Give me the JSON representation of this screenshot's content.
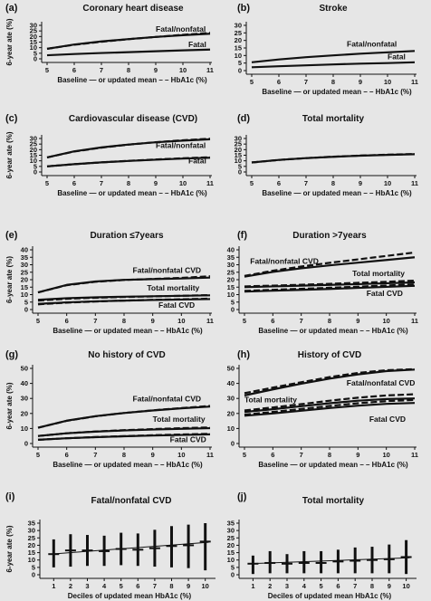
{
  "figure": {
    "background": "#e6e6e6",
    "line_color": "#111111"
  },
  "chart_data": [
    {
      "panel": "(a)",
      "type": "line",
      "title": "Coronary heart disease",
      "ylabel": "6-year ate (%)",
      "xlabel": "Baseline — or updated mean – – HbA1c (%)",
      "xlim": [
        5,
        11
      ],
      "ylim": [
        0,
        30
      ],
      "xticks": [
        5,
        6,
        7,
        8,
        9,
        10,
        11
      ],
      "yticks": [
        0,
        5,
        10,
        15,
        20,
        25,
        30
      ],
      "series": [
        {
          "name": "Fatal/nonfatal",
          "x": [
            5,
            6,
            7,
            8,
            9,
            10,
            11
          ],
          "y": [
            9.0,
            12.8,
            15.6,
            17.7,
            19.6,
            21.2,
            22.5
          ],
          "dashed": [
            9.0,
            12.6,
            15.3,
            17.6,
            19.6,
            21.5,
            23.3
          ]
        },
        {
          "name": "Fatal",
          "x": [
            5,
            6,
            7,
            8,
            9,
            10,
            11
          ],
          "y": [
            3.2,
            4.3,
            5.2,
            6.0,
            6.8,
            7.6,
            8.3
          ]
        }
      ],
      "annotations": [
        {
          "text": "Fatal/nonfatal",
          "x": 9.0,
          "y": 24.5
        },
        {
          "text": "Fatal",
          "x": 10.2,
          "y": 10.5
        }
      ]
    },
    {
      "panel": "(b)",
      "type": "line",
      "title": "Stroke",
      "ylabel": "",
      "xlabel": "Baseline — or updated mean – – HbA1c (%)",
      "xlim": [
        5,
        11
      ],
      "ylim": [
        0,
        30
      ],
      "xticks": [
        5,
        6,
        7,
        8,
        9,
        10,
        11
      ],
      "yticks": [
        0,
        5,
        10,
        15,
        20,
        25,
        30
      ],
      "series": [
        {
          "name": "Fatal/nonfatal",
          "x": [
            5,
            6,
            7,
            8,
            9,
            10,
            11
          ],
          "y": [
            5.5,
            7.4,
            8.9,
            10.1,
            11.2,
            12.1,
            13.0
          ]
        },
        {
          "name": "Fatal",
          "x": [
            5,
            6,
            7,
            8,
            9,
            10,
            11
          ],
          "y": [
            2.2,
            2.9,
            3.5,
            4.1,
            4.6,
            5.0,
            5.5
          ]
        }
      ],
      "annotations": [
        {
          "text": "Fatal/nonfatal",
          "x": 8.5,
          "y": 15.8
        },
        {
          "text": "Fatal",
          "x": 10.0,
          "y": 7.4
        }
      ]
    },
    {
      "panel": "(c)",
      "type": "line",
      "title": "Cardiovascular disease (CVD)",
      "ylabel": "6-year ate (%)",
      "xlabel": "Baseline — or updated mean – – HbA1c (%)",
      "xlim": [
        5,
        11
      ],
      "ylim": [
        0,
        30
      ],
      "xticks": [
        5,
        6,
        7,
        8,
        9,
        10,
        11
      ],
      "yticks": [
        0,
        5,
        10,
        15,
        20,
        25,
        30
      ],
      "series": [
        {
          "name": "Fatal/nonfatal",
          "x": [
            5,
            6,
            7,
            8,
            9,
            10,
            11
          ],
          "y": [
            13.0,
            18.5,
            22.0,
            24.6,
            26.6,
            28.1,
            29.3
          ],
          "dashed": [
            13.0,
            18.3,
            21.8,
            24.5,
            26.7,
            28.4,
            29.8
          ]
        },
        {
          "name": "Fatal",
          "x": [
            5,
            6,
            7,
            8,
            9,
            10,
            11
          ],
          "y": [
            5.0,
            7.0,
            8.6,
            9.9,
            11.0,
            12.0,
            12.8
          ],
          "dashed": [
            5.0,
            7.0,
            8.6,
            10.0,
            11.2,
            12.3,
            13.2
          ]
        }
      ],
      "annotations": [
        {
          "text": "Fatal/nonfatal",
          "x": 9.0,
          "y": 21.5
        },
        {
          "text": "Fatal",
          "x": 10.2,
          "y": 7.8
        }
      ]
    },
    {
      "panel": "(d)",
      "type": "line",
      "title": "Total mortality",
      "ylabel": "",
      "xlabel": "Baseline — or updated mean – – HbA1c (%)",
      "xlim": [
        5,
        11
      ],
      "ylim": [
        0,
        30
      ],
      "xticks": [
        5,
        6,
        7,
        8,
        9,
        10,
        11
      ],
      "yticks": [
        0,
        5,
        10,
        15,
        20,
        25,
        30
      ],
      "series": [
        {
          "name": "Total mortality",
          "x": [
            5,
            6,
            7,
            8,
            9,
            10,
            11
          ],
          "y": [
            8.5,
            10.8,
            12.4,
            13.6,
            14.6,
            15.3,
            15.9
          ],
          "dashed": [
            8.5,
            10.8,
            12.4,
            13.7,
            14.7,
            15.5,
            16.1
          ]
        }
      ],
      "annotations": []
    },
    {
      "panel": "(e)",
      "type": "line",
      "title": "Duration ≤7years",
      "ylabel": "6-year ate (%)",
      "xlabel": "Baseline — or updated mean – – HbA1c (%)",
      "xlim": [
        5,
        11
      ],
      "ylim": [
        0,
        40
      ],
      "xticks": [
        5,
        6,
        7,
        8,
        9,
        10,
        11
      ],
      "yticks": [
        0,
        5,
        10,
        15,
        20,
        25,
        30,
        35,
        40
      ],
      "series": [
        {
          "name": "Fatal/nonfatal CVD",
          "x": [
            5,
            6,
            7,
            8,
            9,
            10,
            11
          ],
          "y": [
            11.5,
            16.5,
            18.8,
            19.9,
            20.4,
            20.8,
            21.4
          ],
          "dashed": [
            11.5,
            16.3,
            18.6,
            19.8,
            20.5,
            21.2,
            22.3
          ]
        },
        {
          "name": "Total mortality",
          "x": [
            5,
            6,
            7,
            8,
            9,
            10,
            11
          ],
          "y": [
            6.5,
            7.6,
            8.2,
            8.6,
            8.9,
            9.2,
            9.5
          ],
          "dashed": [
            6.0,
            7.2,
            7.9,
            8.4,
            8.8,
            9.2,
            9.7
          ]
        },
        {
          "name": "Fatal CVD",
          "x": [
            5,
            6,
            7,
            8,
            9,
            10,
            11
          ],
          "y": [
            3.8,
            4.8,
            5.5,
            6.0,
            6.4,
            6.7,
            7.0
          ],
          "dashed": [
            3.5,
            4.6,
            5.4,
            6.0,
            6.5,
            6.9,
            7.3
          ]
        }
      ],
      "annotations": [
        {
          "text": "Fatal/nonfatal CVD",
          "x": 8.3,
          "y": 24.5
        },
        {
          "text": "Total mortality",
          "x": 8.8,
          "y": 12.6
        },
        {
          "text": "Fatal CVD",
          "x": 9.2,
          "y": 1.2
        }
      ]
    },
    {
      "panel": "(f)",
      "type": "line",
      "title": "Duration >7years",
      "ylabel": "",
      "xlabel": "Baseline — or updated mean – – HbA1c (%)",
      "xlim": [
        5,
        11
      ],
      "ylim": [
        0,
        40
      ],
      "xticks": [
        5,
        6,
        7,
        8,
        9,
        10,
        11
      ],
      "yticks": [
        0,
        5,
        10,
        15,
        20,
        25,
        30,
        35,
        40
      ],
      "series": [
        {
          "name": "Fatal/nonfatal CVD",
          "x": [
            5,
            6,
            7,
            8,
            9,
            10,
            11
          ],
          "y": [
            22.0,
            25.2,
            27.6,
            29.6,
            31.4,
            33.2,
            35.0
          ],
          "dashed": [
            22.5,
            26.0,
            28.8,
            31.3,
            33.6,
            35.9,
            38.2
          ]
        },
        {
          "name": "Total mortality",
          "x": [
            5,
            6,
            7,
            8,
            9,
            10,
            11
          ],
          "y": [
            15.0,
            15.5,
            16.0,
            16.5,
            17.0,
            17.6,
            18.2
          ],
          "dashed": [
            15.5,
            16.0,
            16.6,
            17.2,
            17.9,
            18.6,
            19.4
          ]
        },
        {
          "name": "Fatal CVD",
          "x": [
            5,
            6,
            7,
            8,
            9,
            10,
            11
          ],
          "y": [
            12.0,
            12.6,
            13.2,
            13.8,
            14.5,
            15.2,
            15.9
          ],
          "dashed": [
            12.5,
            13.2,
            13.9,
            14.6,
            15.3,
            16.1,
            16.9
          ]
        }
      ],
      "annotations": [
        {
          "text": "Fatal/nonfatal CVD",
          "x": 5.2,
          "y": 30.5
        },
        {
          "text": "Total mortality",
          "x": 8.8,
          "y": 22.5
        },
        {
          "text": "Fatal CVD",
          "x": 9.3,
          "y": 9.0
        }
      ]
    },
    {
      "panel": "(g)",
      "type": "line",
      "title": "No history of CVD",
      "ylabel": "6-year ate (%)",
      "xlabel": "Baseline — or updated mean – – HbA1c (%)",
      "xlim": [
        5,
        11
      ],
      "ylim": [
        0,
        50
      ],
      "xticks": [
        5,
        6,
        7,
        8,
        9,
        10,
        11
      ],
      "yticks": [
        0,
        10,
        20,
        30,
        40,
        50
      ],
      "series": [
        {
          "name": "Fatal/nonfatal CVD",
          "x": [
            5,
            6,
            7,
            8,
            9,
            10,
            11
          ],
          "y": [
            10.5,
            15.2,
            18.2,
            20.3,
            22.0,
            23.4,
            24.6
          ],
          "dashed": [
            10.5,
            15.1,
            18.1,
            20.3,
            22.1,
            23.6,
            25.0
          ]
        },
        {
          "name": "Total mortality",
          "x": [
            5,
            6,
            7,
            8,
            9,
            10,
            11
          ],
          "y": [
            5.0,
            6.8,
            7.9,
            8.7,
            9.3,
            9.8,
            10.2
          ],
          "dashed": [
            5.0,
            6.8,
            8.0,
            8.9,
            9.6,
            10.2,
            10.7
          ]
        },
        {
          "name": "Fatal CVD",
          "x": [
            5,
            6,
            7,
            8,
            9,
            10,
            11
          ],
          "y": [
            2.5,
            3.5,
            4.2,
            4.8,
            5.3,
            5.7,
            6.1
          ],
          "dashed": [
            2.5,
            3.5,
            4.3,
            4.9,
            5.5,
            6.0,
            6.5
          ]
        }
      ],
      "annotations": [
        {
          "text": "Fatal/nonfatal CVD",
          "x": 8.3,
          "y": 28.0
        },
        {
          "text": "Total mortality",
          "x": 9.0,
          "y": 14.5
        },
        {
          "text": "Fatal CVD",
          "x": 9.6,
          "y": 1.0
        }
      ]
    },
    {
      "panel": "(h)",
      "type": "line",
      "title": "History of CVD",
      "ylabel": "",
      "xlabel": "Baseline — or updated mean – – HbA1c (%)",
      "xlim": [
        5,
        11
      ],
      "ylim": [
        0,
        50
      ],
      "xticks": [
        5,
        6,
        7,
        8,
        9,
        10,
        11
      ],
      "yticks": [
        0,
        10,
        20,
        30,
        40,
        50
      ],
      "series": [
        {
          "name": "Fatal/nonfatal CVD",
          "x": [
            5,
            6,
            7,
            8,
            9,
            10,
            11
          ],
          "y": [
            32.0,
            36.0,
            39.8,
            43.2,
            46.0,
            48.2,
            49.2
          ],
          "dashed": [
            33.5,
            37.2,
            40.8,
            44.2,
            47.0,
            48.8,
            49.5
          ]
        },
        {
          "name": "Total mortality",
          "x": [
            5,
            6,
            7,
            8,
            9,
            10,
            11
          ],
          "y": [
            21.0,
            22.8,
            24.8,
            26.8,
            28.5,
            29.6,
            30.0
          ],
          "dashed": [
            22.0,
            24.0,
            26.2,
            28.5,
            30.5,
            32.0,
            32.8
          ]
        },
        {
          "name": "Fatal CVD",
          "x": [
            5,
            6,
            7,
            8,
            9,
            10,
            11
          ],
          "y": [
            18.5,
            20.0,
            21.8,
            23.6,
            25.2,
            26.4,
            27.0
          ],
          "dashed": [
            19.2,
            21.0,
            23.0,
            25.0,
            26.8,
            28.2,
            29.0
          ]
        }
      ],
      "annotations": [
        {
          "text": "Fatal/nonfatal CVD",
          "x": 8.6,
          "y": 38.5
        },
        {
          "text": "Total mortality",
          "x": 5.0,
          "y": 27.5
        },
        {
          "text": "Fatal CVD",
          "x": 9.4,
          "y": 14.5
        }
      ]
    },
    {
      "panel": "(i)",
      "type": "errorbar",
      "title": "Fatal/nonfatal CVD",
      "ylabel": "6-year ate (%)",
      "xlabel": "Deciles of updated mean HbA1c (%)",
      "xlim": [
        0.5,
        10.5
      ],
      "ylim": [
        0,
        35
      ],
      "xticks": [
        1,
        2,
        3,
        4,
        5,
        6,
        7,
        8,
        9,
        10
      ],
      "yticks": [
        0,
        5,
        10,
        15,
        20,
        25,
        30,
        35
      ],
      "points": [
        {
          "x": 1,
          "y": 14.0,
          "lo": 5.0,
          "hi": 24.0
        },
        {
          "x": 2,
          "y": 16.5,
          "lo": 5.5,
          "hi": 27.5
        },
        {
          "x": 3,
          "y": 16.5,
          "lo": 6.0,
          "hi": 27.0
        },
        {
          "x": 4,
          "y": 16.0,
          "lo": 6.0,
          "hi": 26.5
        },
        {
          "x": 5,
          "y": 17.5,
          "lo": 6.5,
          "hi": 28.5
        },
        {
          "x": 6,
          "y": 17.0,
          "lo": 6.0,
          "hi": 28.0
        },
        {
          "x": 7,
          "y": 18.0,
          "lo": 5.5,
          "hi": 30.5
        },
        {
          "x": 8,
          "y": 19.5,
          "lo": 5.0,
          "hi": 33.0
        },
        {
          "x": 9,
          "y": 20.0,
          "lo": 4.5,
          "hi": 34.0
        },
        {
          "x": 10,
          "y": 22.5,
          "lo": 3.0,
          "hi": 35.0
        }
      ],
      "trend": {
        "x": [
          0.8,
          10.2
        ],
        "y": [
          14.0,
          22.0
        ]
      }
    },
    {
      "panel": "(j)",
      "type": "errorbar",
      "title": "Total mortality",
      "ylabel": "",
      "xlabel": "Deciles of updated mean HbA1c (%)",
      "xlim": [
        0.5,
        10.5
      ],
      "ylim": [
        0,
        35
      ],
      "xticks": [
        1,
        2,
        3,
        4,
        5,
        6,
        7,
        8,
        9,
        10
      ],
      "yticks": [
        0,
        5,
        10,
        15,
        20,
        25,
        30,
        35
      ],
      "points": [
        {
          "x": 1,
          "y": 7.5,
          "lo": 0.5,
          "hi": 13.0
        },
        {
          "x": 2,
          "y": 8.0,
          "lo": 1.0,
          "hi": 16.0
        },
        {
          "x": 3,
          "y": 7.5,
          "lo": 1.0,
          "hi": 14.0
        },
        {
          "x": 4,
          "y": 8.0,
          "lo": 1.0,
          "hi": 16.0
        },
        {
          "x": 5,
          "y": 8.0,
          "lo": 1.0,
          "hi": 16.0
        },
        {
          "x": 6,
          "y": 9.0,
          "lo": 1.0,
          "hi": 17.0
        },
        {
          "x": 7,
          "y": 9.5,
          "lo": 1.0,
          "hi": 18.5
        },
        {
          "x": 8,
          "y": 10.0,
          "lo": 1.0,
          "hi": 19.0
        },
        {
          "x": 9,
          "y": 10.5,
          "lo": 1.0,
          "hi": 20.5
        },
        {
          "x": 10,
          "y": 12.0,
          "lo": 0.5,
          "hi": 23.5
        }
      ],
      "trend": {
        "x": [
          0.8,
          10.2
        ],
        "y": [
          7.5,
          11.5
        ]
      }
    }
  ]
}
